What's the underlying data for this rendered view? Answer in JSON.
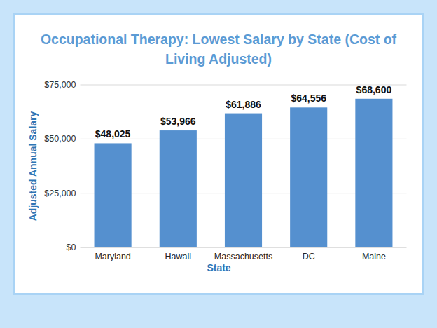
{
  "chart_data": {
    "type": "bar",
    "title": "Occupational Therapy: Lowest Salary by State (Cost of Living Adjusted)",
    "x_label": "State",
    "y_label": "Adjusted Annual Salary",
    "categories": [
      "Maryland",
      "Hawaii",
      "Massachusetts",
      "DC",
      "Maine"
    ],
    "values": [
      48025,
      53966,
      61886,
      64556,
      68600
    ],
    "value_labels": [
      "$48,025",
      "$53,966",
      "$61,886",
      "$64,556",
      "$68,600"
    ],
    "color": "#5590cf",
    "ylim": [
      0,
      75000
    ],
    "yticks": [
      {
        "value": 0,
        "label": "$0"
      },
      {
        "value": 25000,
        "label": "$25,000"
      },
      {
        "value": 50000,
        "label": "$50,000"
      },
      {
        "value": 75000,
        "label": "$75,000"
      }
    ],
    "grid": true,
    "data_labels": true
  }
}
